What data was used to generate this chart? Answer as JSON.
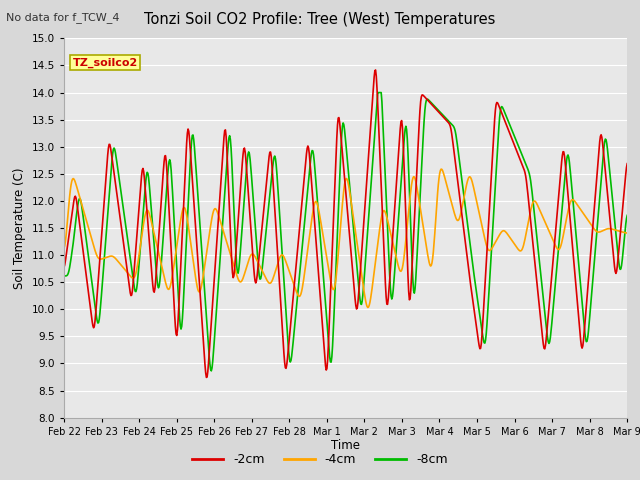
{
  "title": "Tonzi Soil CO2 Profile: Tree (West) Temperatures",
  "subtitle": "No data for f_TCW_4",
  "ylabel": "Soil Temperature (C)",
  "xlabel": "Time",
  "legend_label": "TZ_soilco2",
  "ylim": [
    8.0,
    15.0
  ],
  "yticks": [
    8.0,
    8.5,
    9.0,
    9.5,
    10.0,
    10.5,
    11.0,
    11.5,
    12.0,
    12.5,
    13.0,
    13.5,
    14.0,
    14.5,
    15.0
  ],
  "xtick_labels": [
    "Feb 22",
    "Feb 23",
    "Feb 24",
    "Feb 25",
    "Feb 26",
    "Feb 27",
    "Feb 28",
    "Mar 1",
    "Mar 2",
    "Mar 3",
    "Mar 4",
    "Mar 5",
    "Mar 6",
    "Mar 7",
    "Mar 8",
    "Mar 9"
  ],
  "line_colors": {
    "neg2cm": "#dd0000",
    "neg4cm": "#ffa500",
    "neg8cm": "#00bb00"
  },
  "bg_color": "#d8d8d8",
  "plot_bg_color": "#e8e8e8",
  "grid_color": "#ffffff",
  "line_width": 1.2,
  "n_points": 800
}
